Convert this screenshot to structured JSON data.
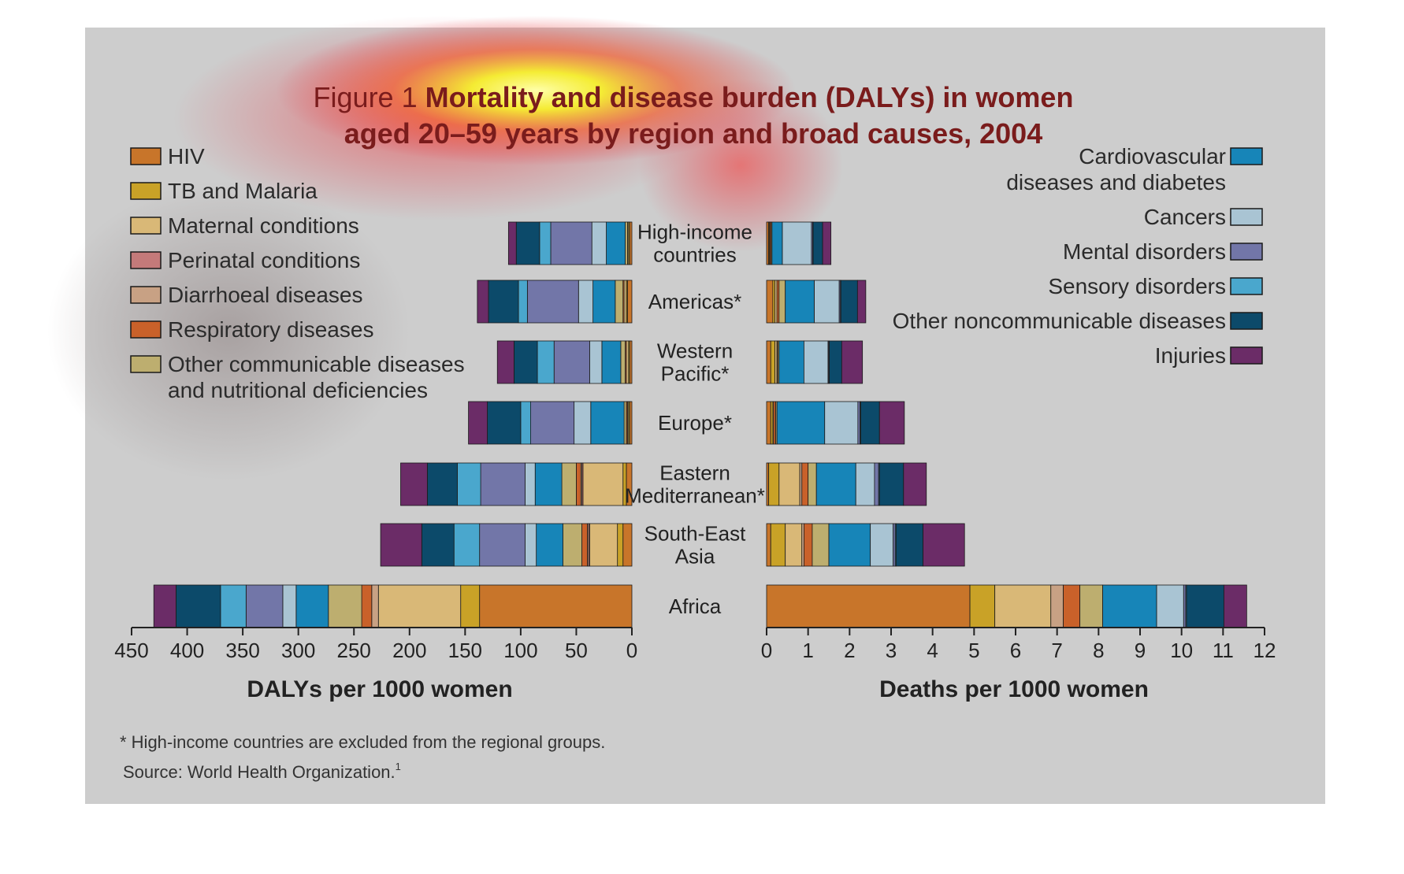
{
  "title": {
    "prefix": "Figure 1",
    "line1": "Mortality and disease burden (DALYs) in women",
    "line2": "aged 20–59 years by region and broad causes, 2004"
  },
  "footnote": "* High-income countries are excluded from the regional groups.",
  "source": "Source: World Health Organization.",
  "source_sup": "1",
  "chart_data": {
    "type": "bar",
    "orientation": "horizontal-stacked-butterfly",
    "regions": [
      {
        "lines": [
          "High-income",
          "countries"
        ]
      },
      {
        "lines": [
          "Americas*"
        ]
      },
      {
        "lines": [
          "Western",
          "Pacific*"
        ]
      },
      {
        "lines": [
          "Europe*"
        ]
      },
      {
        "lines": [
          "Eastern",
          "Mediterranean*"
        ]
      },
      {
        "lines": [
          "South-East",
          "Asia"
        ]
      },
      {
        "lines": [
          "Africa"
        ]
      }
    ],
    "causes": [
      {
        "name": "HIV",
        "color": "#c8752a"
      },
      {
        "name": "TB and Malaria",
        "color": "#c9a227"
      },
      {
        "name": "Maternal conditions",
        "color": "#d9b877"
      },
      {
        "name": "Perinatal conditions",
        "color": "#c47a7a"
      },
      {
        "name": "Diarrhoeal diseases",
        "color": "#c8a184"
      },
      {
        "name": "Respiratory diseases",
        "color": "#c9612a"
      },
      {
        "name": "Other communicable diseases",
        "color": "#bdae6f"
      },
      {
        "name": "Cardiovascular diseases and diabetes",
        "color": "#1785b8"
      },
      {
        "name": "Cancers",
        "color": "#a9c4d3"
      },
      {
        "name": "Mental disorders",
        "color": "#7276a8"
      },
      {
        "name": "Sensory disorders",
        "color": "#4aa7cd"
      },
      {
        "name": "Other noncommunicable diseases",
        "color": "#0c4a6a"
      },
      {
        "name": "Injuries",
        "color": "#6b2c67"
      }
    ],
    "legend_left": [
      {
        "lines": [
          "HIV"
        ],
        "color": "#c8752a"
      },
      {
        "lines": [
          "TB and Malaria"
        ],
        "color": "#c9a227"
      },
      {
        "lines": [
          "Maternal conditions"
        ],
        "color": "#d9b877"
      },
      {
        "lines": [
          "Perinatal conditions"
        ],
        "color": "#c47a7a"
      },
      {
        "lines": [
          "Diarrhoeal diseases"
        ],
        "color": "#c8a184"
      },
      {
        "lines": [
          "Respiratory diseases"
        ],
        "color": "#c9612a"
      },
      {
        "lines": [
          "Other communicable diseases",
          "and nutritional deficiencies"
        ],
        "color": "#bdae6f"
      }
    ],
    "legend_right": [
      {
        "lines": [
          "Cardiovascular",
          "diseases and diabetes"
        ],
        "color": "#1785b8"
      },
      {
        "lines": [
          "Cancers"
        ],
        "color": "#a9c4d3"
      },
      {
        "lines": [
          "Mental disorders"
        ],
        "color": "#7276a8"
      },
      {
        "lines": [
          "Sensory disorders"
        ],
        "color": "#4aa7cd"
      },
      {
        "lines": [
          "Other noncommunicable diseases"
        ],
        "color": "#0c4a6a"
      },
      {
        "lines": [
          "Injuries"
        ],
        "color": "#6b2c67"
      }
    ],
    "dalys": {
      "xlabel": "DALYs per 1000 women",
      "xlim": [
        0,
        450
      ],
      "ticks": [
        450,
        400,
        350,
        300,
        250,
        200,
        150,
        100,
        50,
        0
      ],
      "values": [
        [
          2,
          1,
          1,
          0,
          0,
          0,
          2,
          17,
          13,
          37,
          10,
          21,
          7
        ],
        [
          4,
          1,
          2,
          0,
          0,
          1,
          7,
          20,
          13,
          46,
          8,
          27,
          10
        ],
        [
          2,
          1,
          2,
          0,
          0,
          1,
          4,
          17,
          11,
          32,
          15,
          21,
          15
        ],
        [
          2,
          1,
          1,
          0,
          0,
          1,
          2,
          30,
          15,
          39,
          9,
          30,
          17
        ],
        [
          5,
          3,
          36,
          1,
          1,
          4,
          13,
          24,
          9,
          40,
          21,
          27,
          24
        ],
        [
          8,
          5,
          25,
          1,
          1,
          5,
          17,
          24,
          10,
          41,
          23,
          29,
          37
        ],
        [
          137,
          17,
          74,
          0,
          6,
          9,
          30,
          29,
          12,
          33,
          23,
          40,
          20
        ]
      ]
    },
    "deaths": {
      "xlabel": "Deaths per 1000 women",
      "xlim": [
        0,
        12
      ],
      "ticks": [
        0,
        1,
        2,
        3,
        4,
        5,
        6,
        7,
        8,
        9,
        10,
        11,
        12
      ],
      "values": [
        [
          0.05,
          0.02,
          0.01,
          0,
          0,
          0.03,
          0.02,
          0.25,
          0.7,
          0.03,
          0.01,
          0.23,
          0.2
        ],
        [
          0.15,
          0.05,
          0.05,
          0,
          0,
          0.05,
          0.15,
          0.7,
          0.6,
          0.03,
          0.01,
          0.4,
          0.2
        ],
        [
          0.1,
          0.1,
          0.05,
          0,
          0,
          0.02,
          0.03,
          0.6,
          0.58,
          0.02,
          0.01,
          0.3,
          0.5
        ],
        [
          0.1,
          0.05,
          0.02,
          0,
          0,
          0.05,
          0.03,
          1.15,
          0.8,
          0.05,
          0.02,
          0.45,
          0.6
        ],
        [
          0.05,
          0.25,
          0.5,
          0,
          0.05,
          0.15,
          0.2,
          0.95,
          0.45,
          0.1,
          0.02,
          0.58,
          0.55
        ],
        [
          0.1,
          0.35,
          0.4,
          0,
          0.05,
          0.2,
          0.4,
          1.0,
          0.55,
          0.05,
          0.02,
          0.65,
          1.0
        ],
        [
          4.9,
          0.6,
          1.35,
          0,
          0.3,
          0.4,
          0.55,
          1.3,
          0.65,
          0.05,
          0.02,
          0.9,
          0.55
        ]
      ]
    }
  }
}
